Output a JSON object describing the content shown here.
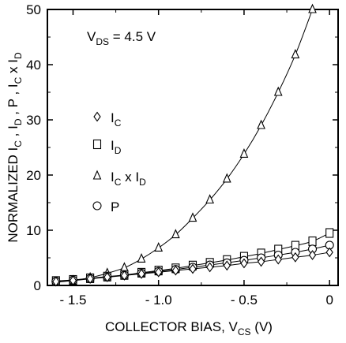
{
  "chart_data": {
    "type": "line",
    "annotation": {
      "main": "V",
      "sub": "DS",
      "rest": " = 4.5 V"
    },
    "xlabel": {
      "main": "COLLECTOR BIAS, V",
      "sub": "CS",
      "rest": " (V)"
    },
    "ylabel": {
      "parts": [
        {
          "t": "NORMALIZED I",
          "sub": false
        },
        {
          "t": "C",
          "sub": true
        },
        {
          "t": " , I",
          "sub": false
        },
        {
          "t": "D",
          "sub": true
        },
        {
          "t": " , P , I",
          "sub": false
        },
        {
          "t": "C",
          "sub": true
        },
        {
          "t": " x I",
          "sub": false
        },
        {
          "t": "D",
          "sub": true
        }
      ]
    },
    "xlim": [
      -1.65,
      0.05
    ],
    "ylim": [
      0,
      50
    ],
    "xticks": [
      -1.5,
      -1.0,
      -0.5,
      0
    ],
    "xtick_labels": [
      "- 1.5",
      "- 1.0",
      "- 0.5",
      "0"
    ],
    "yticks": [
      0,
      10,
      20,
      30,
      40,
      50
    ],
    "ytick_labels": [
      "0",
      "10",
      "20",
      "30",
      "40",
      "50"
    ],
    "legend_placement": "left-middle",
    "series": [
      {
        "name": "I",
        "name_sub": "C",
        "marker": "diamond",
        "x": [
          -1.6,
          -1.5,
          -1.4,
          -1.3,
          -1.2,
          -1.1,
          -1.0,
          -0.9,
          -0.8,
          -0.7,
          -0.6,
          -0.5,
          -0.4,
          -0.3,
          -0.2,
          -0.1,
          0
        ],
        "y": [
          0.7,
          0.9,
          1.2,
          1.5,
          1.8,
          2.1,
          2.4,
          2.7,
          3.0,
          3.3,
          3.6,
          4.0,
          4.3,
          4.7,
          5.1,
          5.5,
          6.0
        ]
      },
      {
        "name": "I",
        "name_sub": "D",
        "marker": "square",
        "x": [
          -1.6,
          -1.5,
          -1.4,
          -1.3,
          -1.2,
          -1.1,
          -1.0,
          -0.9,
          -0.8,
          -0.7,
          -0.6,
          -0.5,
          -0.4,
          -0.3,
          -0.2,
          -0.1,
          0
        ],
        "y": [
          0.8,
          1.0,
          1.3,
          1.6,
          1.9,
          2.3,
          2.7,
          3.1,
          3.6,
          4.1,
          4.6,
          5.2,
          5.8,
          6.5,
          7.2,
          8.0,
          9.5
        ]
      },
      {
        "name": "I",
        "name_sub": "C",
        "name_rest": " x I",
        "name_sub2": "D",
        "marker": "triangle",
        "x": [
          -1.6,
          -1.5,
          -1.4,
          -1.3,
          -1.2,
          -1.1,
          -1.0,
          -0.9,
          -0.8,
          -0.7,
          -0.6,
          -0.5,
          -0.4,
          -0.3,
          -0.2,
          -0.1
        ],
        "y": [
          0.6,
          0.9,
          1.4,
          2.2,
          3.2,
          4.8,
          6.8,
          9.2,
          12.2,
          15.5,
          19.3,
          23.8,
          29.0,
          35.0,
          41.8,
          50.0
        ]
      },
      {
        "name": "P",
        "marker": "circle",
        "x": [
          -1.6,
          -1.5,
          -1.4,
          -1.3,
          -1.2,
          -1.1,
          -1.0,
          -0.9,
          -0.8,
          -0.7,
          -0.6,
          -0.5,
          -0.4,
          -0.3,
          -0.2,
          -0.1,
          0
        ],
        "y": [
          0.75,
          0.95,
          1.25,
          1.55,
          1.85,
          2.2,
          2.55,
          2.9,
          3.3,
          3.7,
          4.1,
          4.55,
          5.0,
          5.5,
          6.0,
          6.6,
          7.3
        ]
      }
    ]
  }
}
